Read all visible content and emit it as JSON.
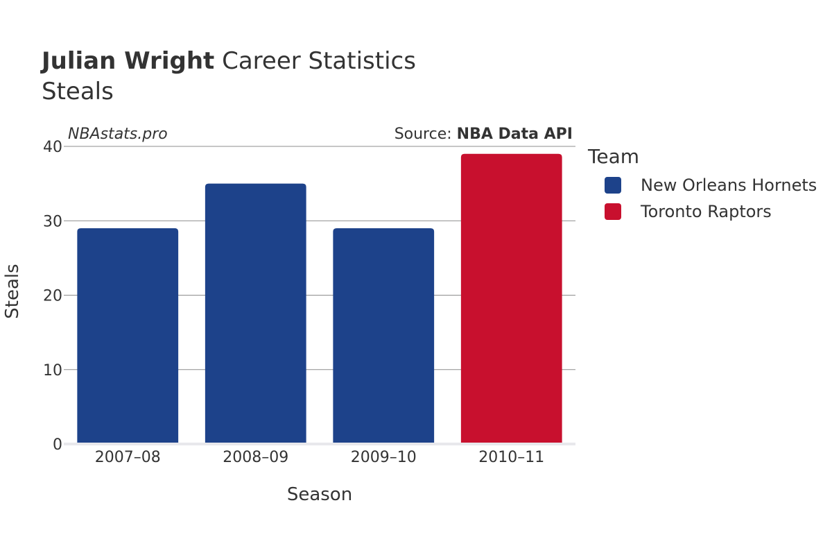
{
  "header": {
    "title_bold": "Julian Wright",
    "title_rest": " Career Statistics",
    "subtitle": "Steals"
  },
  "credits": {
    "site": "NBAstats.pro",
    "source_prefix": "Source: ",
    "source_name": "NBA Data API"
  },
  "legend": {
    "title": "Team",
    "items": [
      {
        "label": "New Orleans Hornets",
        "color": "#1d428a"
      },
      {
        "label": "Toronto Raptors",
        "color": "#c8102e"
      }
    ]
  },
  "chart_data": {
    "type": "bar",
    "title": "Julian Wright Career Statistics",
    "subtitle": "Steals",
    "xlabel": "Season",
    "ylabel": "Steals",
    "ylim": [
      0,
      40
    ],
    "yticks": [
      0,
      10,
      20,
      30,
      40
    ],
    "grid": true,
    "legend_position": "right",
    "categories": [
      "2007–08",
      "2008–09",
      "2009–10",
      "2010–11"
    ],
    "values": [
      29,
      35,
      29,
      39
    ],
    "teams": [
      "New Orleans Hornets",
      "New Orleans Hornets",
      "New Orleans Hornets",
      "Toronto Raptors"
    ],
    "colors": [
      "#1d428a",
      "#1d428a",
      "#1d428a",
      "#c8102e"
    ]
  }
}
